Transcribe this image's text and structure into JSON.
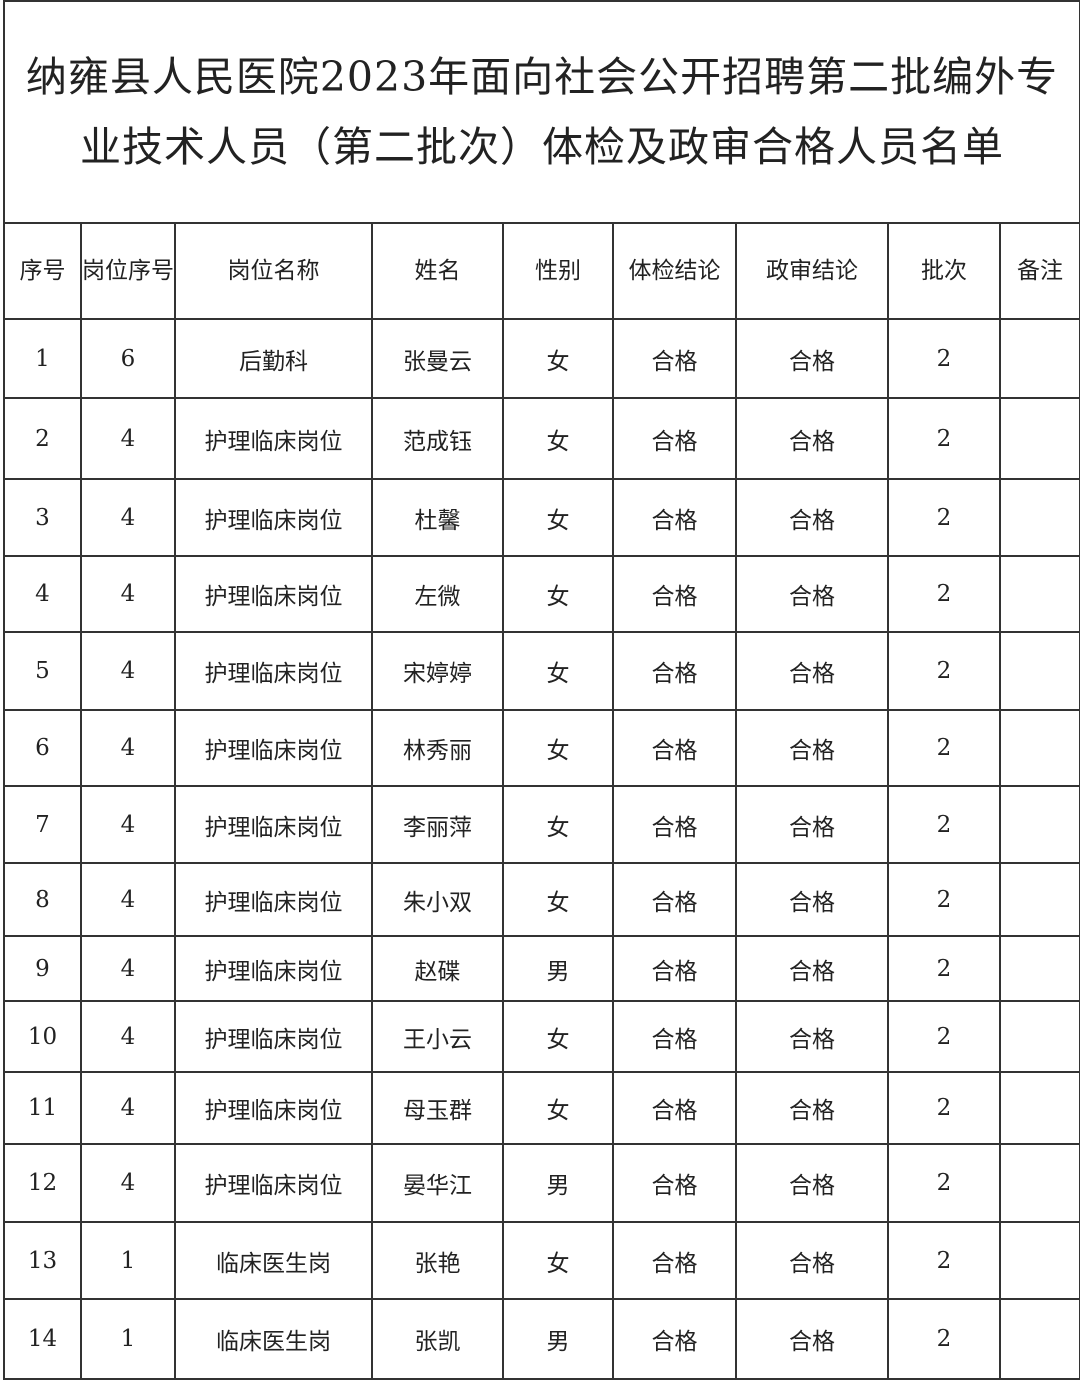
{
  "title": "纳雍县人民医院2023年面向社会公开招聘第二批编外专业技术人员（第二批次）体检及政审合格人员名单",
  "headers": [
    "序号",
    "岗位序号",
    "岗位名称",
    "姓名",
    "性别",
    "体检结论",
    "政审结论",
    "批次",
    "备注"
  ],
  "rows": [
    [
      "1",
      "6",
      "后勤科",
      "张曼云",
      "女",
      "合格",
      "合格",
      "2",
      ""
    ],
    [
      "2",
      "4",
      "护理临床岗位",
      "范成钰",
      "女",
      "合格",
      "合格",
      "2",
      ""
    ],
    [
      "3",
      "4",
      "护理临床岗位",
      "杜馨",
      "女",
      "合格",
      "合格",
      "2",
      ""
    ],
    [
      "4",
      "4",
      "护理临床岗位",
      "左微",
      "女",
      "合格",
      "合格",
      "2",
      ""
    ],
    [
      "5",
      "4",
      "护理临床岗位",
      "宋婷婷",
      "女",
      "合格",
      "合格",
      "2",
      ""
    ],
    [
      "6",
      "4",
      "护理临床岗位",
      "林秀丽",
      "女",
      "合格",
      "合格",
      "2",
      ""
    ],
    [
      "7",
      "4",
      "护理临床岗位",
      "李丽萍",
      "女",
      "合格",
      "合格",
      "2",
      ""
    ],
    [
      "8",
      "4",
      "护理临床岗位",
      "朱小双",
      "女",
      "合格",
      "合格",
      "2",
      ""
    ],
    [
      "9",
      "4",
      "护理临床岗位",
      "赵碟",
      "男",
      "合格",
      "合格",
      "2",
      ""
    ],
    [
      "10",
      "4",
      "护理临床岗位",
      "王小云",
      "女",
      "合格",
      "合格",
      "2",
      ""
    ],
    [
      "11",
      "4",
      "护理临床岗位",
      "母玉群",
      "女",
      "合格",
      "合格",
      "2",
      ""
    ],
    [
      "12",
      "4",
      "护理临床岗位",
      "晏华江",
      "男",
      "合格",
      "合格",
      "2",
      ""
    ],
    [
      "13",
      "1",
      "临床医生岗",
      "张艳",
      "女",
      "合格",
      "合格",
      "2",
      ""
    ],
    [
      "14",
      "1",
      "临床医生岗",
      "张凯",
      "男",
      "合格",
      "合格",
      "2",
      ""
    ]
  ]
}
